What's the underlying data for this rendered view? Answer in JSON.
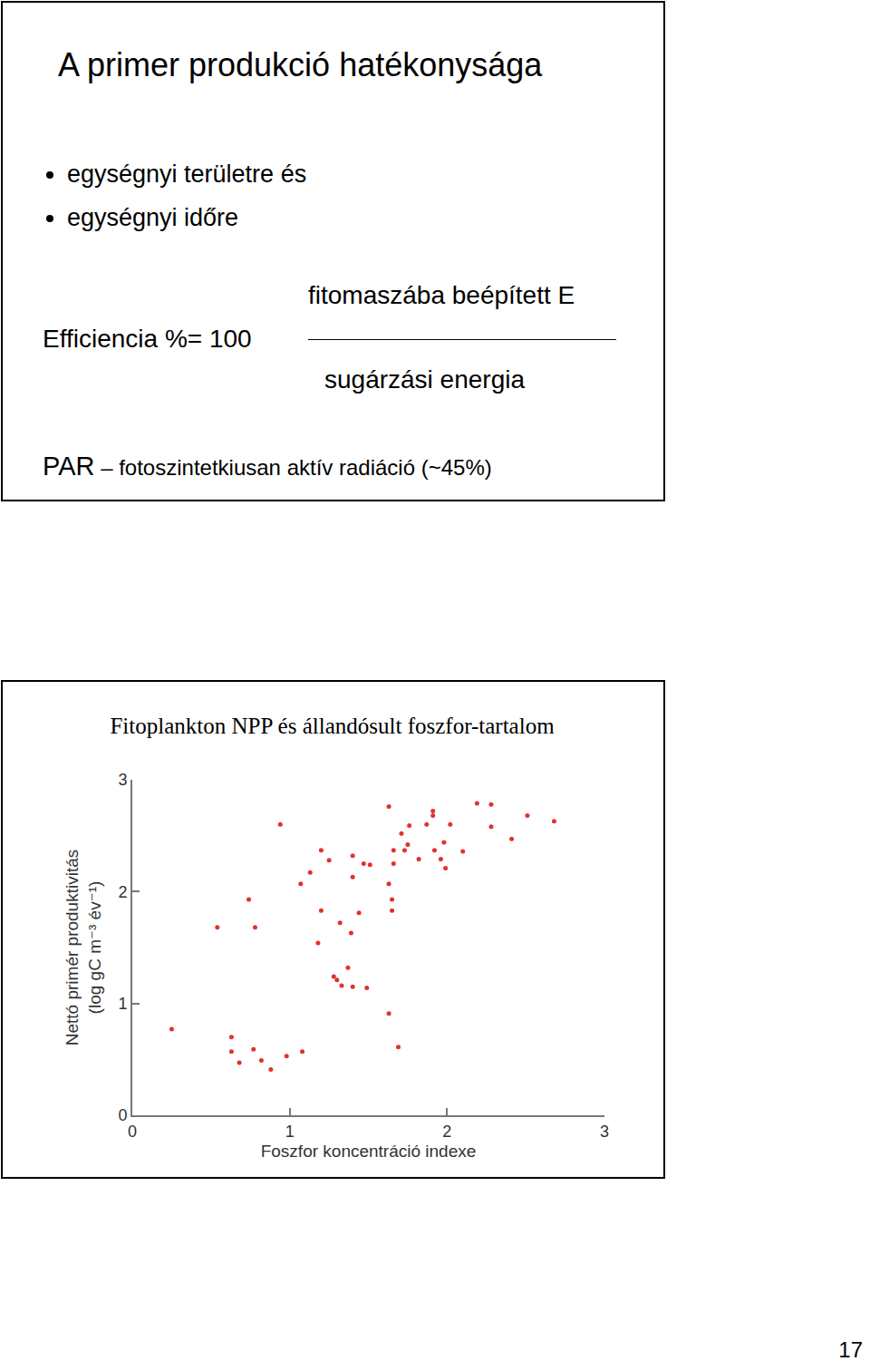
{
  "slide": {
    "title": "A primer produkció hatékonysága",
    "bullets": [
      "egységnyi területre és",
      "egységnyi időre"
    ],
    "formula": {
      "left": "Efficiencia %= 100",
      "numerator": "fitomaszába beépített E",
      "denominator": "sugárzási energia"
    },
    "par": {
      "abbr": "PAR",
      "separator": "–",
      "text": "fotoszintetkiusan aktív radiáció (~45%)"
    }
  },
  "chart_data": {
    "type": "scatter",
    "title": "Fitoplankton NPP és állandósult foszfor-tartalom",
    "xlabel": "Foszfor koncentráció indexe",
    "ylabel": "Nettó primér produktivitás\n(log gC m⁻³ év⁻¹)",
    "x": [
      0.25,
      0.54,
      0.74,
      0.78,
      0.63,
      0.63,
      0.68,
      0.77,
      0.82,
      0.88,
      0.98,
      1.08,
      0.94,
      1.07,
      1.13,
      1.2,
      1.25,
      1.2,
      1.18,
      1.32,
      1.39,
      1.28,
      1.3,
      1.33,
      1.37,
      1.4,
      1.49,
      1.4,
      1.4,
      1.44,
      1.47,
      1.51,
      1.63,
      1.66,
      1.63,
      1.65,
      1.65,
      1.63,
      1.69,
      1.66,
      1.71,
      1.73,
      1.76,
      1.75,
      1.82,
      1.87,
      1.91,
      1.91,
      1.92,
      1.96,
      1.98,
      2.02,
      1.99,
      2.1,
      2.19,
      2.28,
      2.28,
      2.41,
      2.51,
      2.68
    ],
    "values": [
      0.77,
      1.68,
      1.93,
      1.68,
      0.7,
      0.57,
      0.47,
      0.59,
      0.49,
      0.41,
      0.53,
      0.57,
      2.6,
      2.07,
      2.17,
      2.37,
      2.28,
      1.83,
      1.54,
      1.72,
      1.63,
      1.24,
      1.21,
      1.16,
      1.32,
      1.15,
      1.14,
      2.32,
      2.13,
      1.81,
      2.25,
      2.24,
      2.76,
      2.25,
      2.07,
      1.93,
      1.83,
      0.91,
      0.61,
      2.37,
      2.52,
      2.37,
      2.59,
      2.42,
      2.29,
      2.6,
      2.68,
      2.72,
      2.37,
      2.29,
      2.44,
      2.6,
      2.21,
      2.36,
      2.79,
      2.78,
      2.58,
      2.47,
      2.68,
      2.63
    ],
    "color": "#e3302b",
    "marker": "circle",
    "xlim": [
      0,
      3
    ],
    "ylim": [
      0,
      3
    ],
    "xticks": [
      0,
      1,
      2,
      3
    ],
    "yticks": [
      0,
      1,
      2,
      3
    ],
    "grid": false
  },
  "page_number": 17
}
